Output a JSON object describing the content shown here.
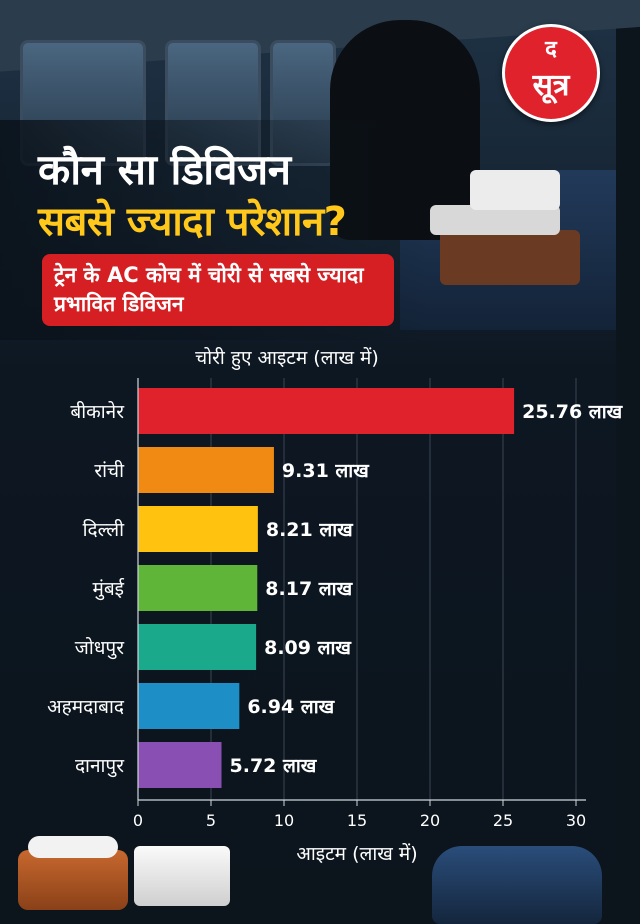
{
  "brand": {
    "line1": "द",
    "line2": "सूत्र"
  },
  "headline": {
    "line1": "कौन सा डिविजन",
    "line2": "सबसे ज्यादा परेशान?"
  },
  "subtitle": "ट्रेन के AC कोच में चोरी से सबसे ज्यादा प्रभावित डिविजन",
  "colors": {
    "accent": "#d51f22",
    "headline_highlight": "#ffc81a",
    "bars": [
      "#e0222c",
      "#f08a12",
      "#ffc20e",
      "#5fb537",
      "#1aa98a",
      "#1e8fc6",
      "#8a4fb3"
    ]
  },
  "chart_data": {
    "type": "bar",
    "orientation": "horizontal",
    "title": "चोरी हुए आइटम (लाख में)",
    "xlabel": "आइटम (लाख में)",
    "ylabel": "",
    "categories": [
      "बीकानेर",
      "रांची",
      "दिल्ली",
      "मुंबई",
      "जोधपुर",
      "अहमदाबाद",
      "दानापुर"
    ],
    "values": [
      25.76,
      9.31,
      8.21,
      8.17,
      8.09,
      6.94,
      5.72
    ],
    "value_labels": [
      "25.76 लाख",
      "9.31 लाख",
      "8.21 लाख",
      "8.17 लाख",
      "8.09 लाख",
      "6.94 लाख",
      "5.72 लाख"
    ],
    "xlim": [
      0,
      30
    ],
    "xticks": [
      0,
      5,
      10,
      15,
      20,
      25,
      30
    ],
    "grid": true
  }
}
